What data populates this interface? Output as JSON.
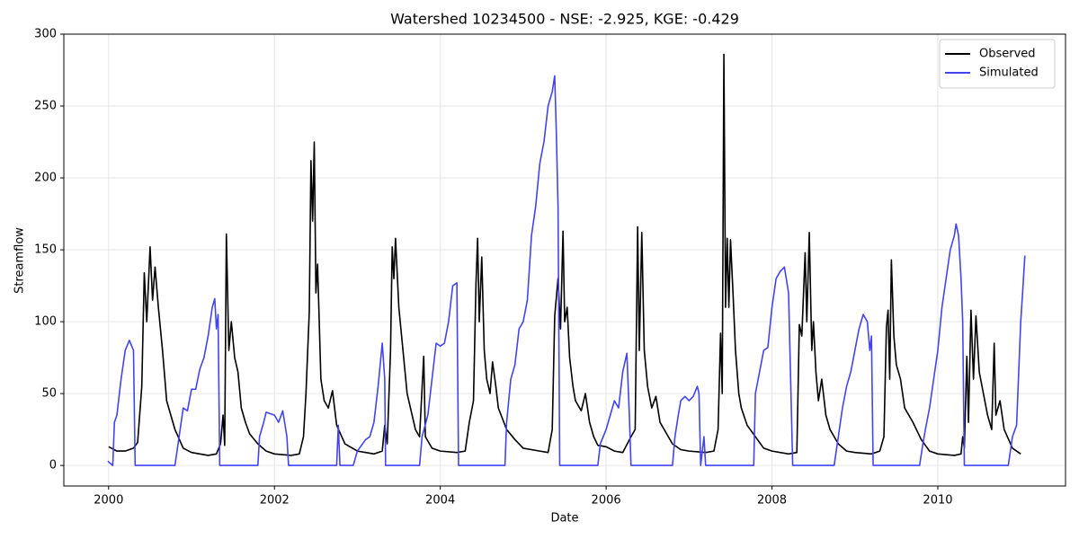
{
  "chart_data": {
    "type": "line",
    "title": "Watershed 10234500 - NSE: -2.925, KGE: -0.429",
    "x_label": "Date",
    "y_label": "Streamflow",
    "xlim": [
      1999.46,
      2011.54
    ],
    "ylim": [
      -14.3,
      300
    ],
    "xticks": [
      2000,
      2002,
      2004,
      2006,
      2008,
      2010
    ],
    "yticks": [
      0,
      50,
      100,
      150,
      200,
      250,
      300
    ],
    "grid": true,
    "legend_position": "upper right",
    "series": [
      {
        "name": "Observed",
        "color": "#000000",
        "x": [
          2000.0,
          2000.1,
          2000.2,
          2000.3,
          2000.35,
          2000.4,
          2000.43,
          2000.46,
          2000.5,
          2000.53,
          2000.56,
          2000.6,
          2000.65,
          2000.7,
          2000.75,
          2000.8,
          2000.9,
          2001.0,
          2001.1,
          2001.2,
          2001.3,
          2001.35,
          2001.38,
          2001.4,
          2001.42,
          2001.45,
          2001.48,
          2001.52,
          2001.56,
          2001.6,
          2001.65,
          2001.7,
          2001.8,
          2001.9,
          2002.0,
          2002.2,
          2002.3,
          2002.35,
          2002.38,
          2002.42,
          2002.44,
          2002.46,
          2002.48,
          2002.5,
          2002.52,
          2002.56,
          2002.6,
          2002.65,
          2002.7,
          2002.75,
          2002.85,
          2003.0,
          2003.1,
          2003.2,
          2003.3,
          2003.33,
          2003.36,
          2003.4,
          2003.42,
          2003.44,
          2003.46,
          2003.5,
          2003.55,
          2003.6,
          2003.7,
          2003.75,
          2003.8,
          2003.82,
          2003.9,
          2004.0,
          2004.2,
          2004.3,
          2004.35,
          2004.4,
          2004.43,
          2004.45,
          2004.47,
          2004.5,
          2004.53,
          2004.56,
          2004.6,
          2004.63,
          2004.67,
          2004.7,
          2004.8,
          2004.9,
          2005.0,
          2005.2,
          2005.3,
          2005.35,
          2005.38,
          2005.42,
          2005.45,
          2005.48,
          2005.5,
          2005.53,
          2005.56,
          2005.6,
          2005.63,
          2005.7,
          2005.75,
          2005.8,
          2005.85,
          2005.9,
          2006.0,
          2006.1,
          2006.2,
          2006.3,
          2006.35,
          2006.38,
          2006.4,
          2006.43,
          2006.46,
          2006.5,
          2006.55,
          2006.6,
          2006.65,
          2006.7,
          2006.8,
          2006.9,
          2007.0,
          2007.2,
          2007.3,
          2007.35,
          2007.38,
          2007.4,
          2007.42,
          2007.44,
          2007.46,
          2007.48,
          2007.5,
          2007.53,
          2007.56,
          2007.6,
          2007.63,
          2007.7,
          2007.8,
          2007.9,
          2008.0,
          2008.2,
          2008.3,
          2008.33,
          2008.36,
          2008.4,
          2008.42,
          2008.45,
          2008.48,
          2008.5,
          2008.53,
          2008.56,
          2008.6,
          2008.65,
          2008.7,
          2008.8,
          2008.9,
          2009.0,
          2009.2,
          2009.3,
          2009.35,
          2009.38,
          2009.4,
          2009.42,
          2009.44,
          2009.47,
          2009.5,
          2009.55,
          2009.6,
          2009.7,
          2009.8,
          2009.9,
          2010.0,
          2010.2,
          2010.28,
          2010.3,
          2010.32,
          2010.35,
          2010.37,
          2010.4,
          2010.43,
          2010.46,
          2010.5,
          2010.55,
          2010.6,
          2010.65,
          2010.68,
          2010.7,
          2010.75,
          2010.8,
          2010.9,
          2011.0
        ],
        "values": [
          13,
          10,
          10,
          12,
          16,
          55,
          134,
          100,
          152,
          115,
          138,
          110,
          80,
          45,
          35,
          25,
          12,
          9,
          8,
          7,
          8,
          15,
          35,
          14,
          161,
          80,
          100,
          75,
          65,
          40,
          30,
          22,
          15,
          10,
          8,
          7,
          8,
          20,
          50,
          107,
          212,
          170,
          225,
          120,
          140,
          60,
          45,
          40,
          52,
          28,
          15,
          10,
          9,
          8,
          10,
          28,
          15,
          80,
          152,
          130,
          158,
          110,
          80,
          50,
          25,
          20,
          76,
          20,
          12,
          10,
          9,
          10,
          30,
          45,
          126,
          158,
          100,
          145,
          80,
          60,
          50,
          72,
          55,
          40,
          25,
          18,
          12,
          10,
          9,
          25,
          104,
          130,
          95,
          163,
          100,
          110,
          75,
          55,
          45,
          38,
          50,
          30,
          20,
          14,
          13,
          10,
          9,
          20,
          25,
          166,
          80,
          162,
          80,
          55,
          40,
          48,
          30,
          25,
          15,
          11,
          10,
          9,
          10,
          25,
          92,
          50,
          286,
          110,
          158,
          110,
          157,
          120,
          80,
          50,
          40,
          28,
          20,
          12,
          10,
          8,
          9,
          98,
          90,
          148,
          100,
          162,
          80,
          100,
          65,
          45,
          60,
          35,
          25,
          15,
          10,
          9,
          8,
          10,
          20,
          96,
          108,
          60,
          143,
          90,
          70,
          60,
          40,
          30,
          18,
          10,
          8,
          7,
          8,
          20,
          12,
          76,
          30,
          108,
          60,
          104,
          65,
          50,
          35,
          25,
          85,
          35,
          45,
          25,
          12,
          8
        ]
      },
      {
        "name": "Simulated",
        "color": "#4444ee",
        "x": [
          1999.99,
          2000.05,
          2000.07,
          2000.1,
          2000.15,
          2000.2,
          2000.25,
          2000.3,
          2000.32,
          2000.8,
          2000.82,
          2000.85,
          2000.9,
          2000.95,
          2001.0,
          2001.05,
          2001.1,
          2001.15,
          2001.2,
          2001.25,
          2001.28,
          2001.3,
          2001.32,
          2001.34,
          2001.8,
          2001.82,
          2001.87,
          2001.9,
          2002.0,
          2002.05,
          2002.1,
          2002.15,
          2002.17,
          2002.75,
          2002.77,
          2002.79,
          2002.95,
          2003.0,
          2003.1,
          2003.15,
          2003.2,
          2003.25,
          2003.3,
          2003.33,
          2003.34,
          2003.75,
          2003.78,
          2003.85,
          2003.9,
          2003.95,
          2004.0,
          2004.05,
          2004.1,
          2004.15,
          2004.2,
          2004.22,
          2004.78,
          2004.8,
          2004.85,
          2004.9,
          2004.95,
          2005.0,
          2005.05,
          2005.1,
          2005.15,
          2005.2,
          2005.25,
          2005.3,
          2005.35,
          2005.38,
          2005.4,
          2005.42,
          2005.44,
          2005.9,
          2005.93,
          2006.0,
          2006.05,
          2006.1,
          2006.15,
          2006.2,
          2006.25,
          2006.28,
          2006.3,
          2006.8,
          2006.83,
          2006.87,
          2006.9,
          2006.95,
          2007.0,
          2007.05,
          2007.1,
          2007.12,
          2007.14,
          2007.18,
          2007.2,
          2007.78,
          2007.8,
          2007.85,
          2007.9,
          2007.95,
          2008.0,
          2008.05,
          2008.1,
          2008.15,
          2008.2,
          2008.25,
          2008.75,
          2008.8,
          2008.85,
          2008.9,
          2008.95,
          2009.0,
          2009.05,
          2009.1,
          2009.15,
          2009.18,
          2009.2,
          2009.22,
          2009.78,
          2009.82,
          2009.85,
          2009.9,
          2009.95,
          2010.0,
          2010.05,
          2010.1,
          2010.15,
          2010.2,
          2010.22,
          2010.25,
          2010.28,
          2010.3,
          2010.32,
          2010.85,
          2010.9,
          2010.95,
          2011.0,
          2011.03,
          2011.05
        ],
        "values": [
          3,
          0,
          30,
          35,
          60,
          80,
          87,
          80,
          0,
          0,
          8,
          20,
          40,
          38,
          53,
          53,
          67,
          75,
          90,
          110,
          116,
          95,
          105,
          0,
          0,
          20,
          30,
          37,
          35,
          30,
          38,
          20,
          0,
          0,
          28,
          0,
          0,
          10,
          18,
          20,
          30,
          55,
          85,
          60,
          0,
          0,
          20,
          35,
          60,
          85,
          83,
          85,
          100,
          125,
          127,
          0,
          0,
          30,
          60,
          70,
          95,
          100,
          115,
          160,
          180,
          210,
          225,
          250,
          260,
          271,
          230,
          180,
          0,
          0,
          15,
          25,
          35,
          45,
          40,
          65,
          78,
          35,
          0,
          0,
          20,
          35,
          45,
          48,
          45,
          48,
          55,
          50,
          0,
          20,
          0,
          0,
          50,
          65,
          80,
          82,
          110,
          130,
          135,
          138,
          120,
          0,
          0,
          20,
          40,
          55,
          65,
          80,
          95,
          105,
          100,
          80,
          90,
          0,
          0,
          15,
          25,
          40,
          60,
          80,
          110,
          130,
          150,
          160,
          168,
          160,
          130,
          100,
          0,
          0,
          20,
          28,
          100,
          127,
          146
        ]
      }
    ]
  }
}
